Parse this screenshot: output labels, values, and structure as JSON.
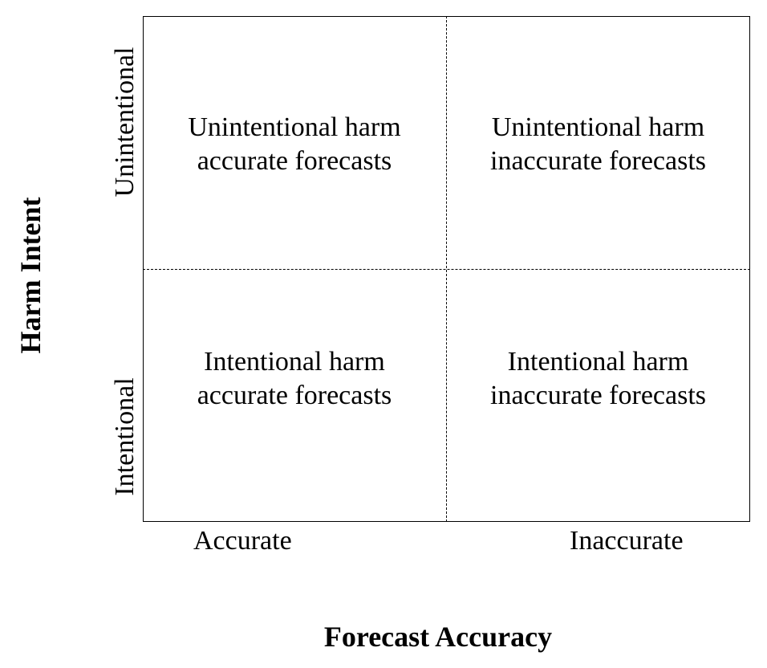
{
  "diagram": {
    "quadrants": {
      "top_left": {
        "line1": "Unintentional harm",
        "line2": "accurate forecasts"
      },
      "top_right": {
        "line1": "Unintentional harm",
        "line2": "inaccurate forecasts"
      },
      "bottom_left": {
        "line1": "Intentional harm",
        "line2": "accurate forecasts"
      },
      "bottom_right": {
        "line1": "Intentional harm",
        "line2": "inaccurate forecasts"
      }
    },
    "x_axis": {
      "title": "Forecast Accuracy",
      "ticks": [
        "Accurate",
        "Inaccurate"
      ]
    },
    "y_axis": {
      "title": "Harm Intent",
      "ticks": [
        "Unintentional",
        "Intentional"
      ]
    }
  }
}
